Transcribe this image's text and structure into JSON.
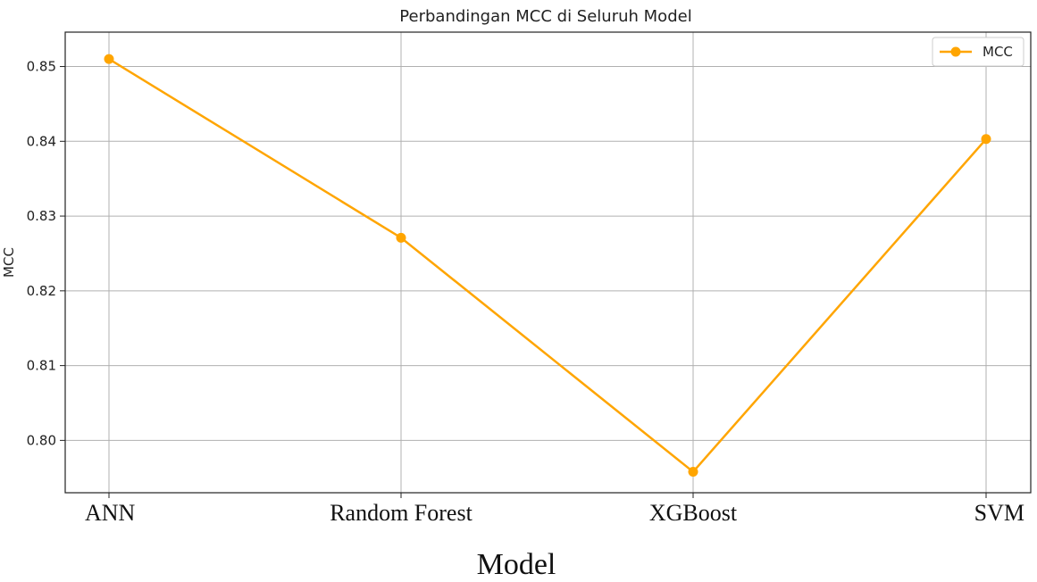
{
  "chart_data": {
    "type": "line",
    "title": "Perbandingan MCC di Seluruh Model",
    "xlabel": "Model",
    "ylabel": "MCC",
    "categories": [
      "ANN",
      "Random Forest",
      "XGBoost",
      "SVM"
    ],
    "series": [
      {
        "name": "MCC",
        "values": [
          0.851,
          0.8271,
          0.7958,
          0.8403
        ],
        "color": "#FFA500"
      }
    ],
    "yticks": [
      "0.80",
      "0.81",
      "0.82",
      "0.83",
      "0.84",
      "0.85"
    ],
    "ylim": [
      0.793,
      0.8546
    ],
    "grid": true,
    "legend": "top-right"
  }
}
